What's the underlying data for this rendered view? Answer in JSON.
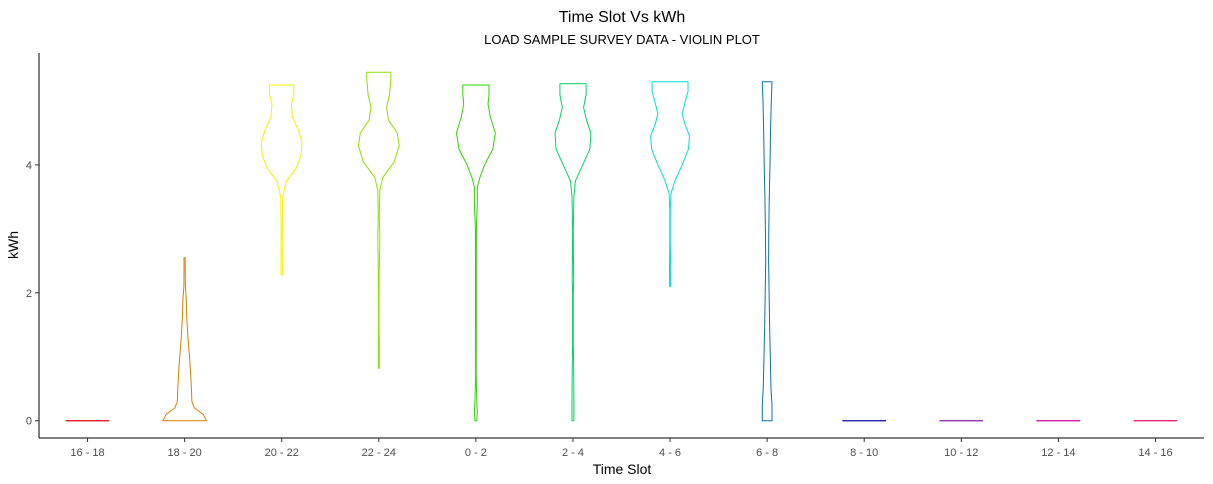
{
  "chart_data": {
    "type": "violin",
    "title": "Time Slot Vs kWh",
    "subtitle": "LOAD SAMPLE SURVEY DATA - VIOLIN PLOT",
    "xlabel": "Time Slot",
    "ylabel": "kWh",
    "ylim": [
      -0.27,
      5.75
    ],
    "yticks": [
      0,
      2,
      4
    ],
    "grid": false,
    "legend": "none",
    "categories": [
      "16 - 18",
      "18 - 20",
      "20 - 22",
      "22 - 24",
      "0 - 2",
      "2 - 4",
      "4 - 6",
      "6 - 8",
      "8 - 10",
      "10 - 12",
      "12 - 14",
      "14 - 16"
    ],
    "series": [
      {
        "category": "16 - 18",
        "color": "#e8000b",
        "profile": [
          [
            0,
            0.45
          ]
        ]
      },
      {
        "category": "18 - 20",
        "color": "#d68100",
        "profile": [
          [
            0,
            0.45
          ],
          [
            0.1,
            0.38
          ],
          [
            0.2,
            0.2
          ],
          [
            0.3,
            0.15
          ],
          [
            0.5,
            0.14
          ],
          [
            0.8,
            0.12
          ],
          [
            1.0,
            0.1
          ],
          [
            1.3,
            0.07
          ],
          [
            1.6,
            0.045
          ],
          [
            1.9,
            0.035
          ],
          [
            2.1,
            0.015
          ],
          [
            2.4,
            0.012
          ],
          [
            2.55,
            0.012
          ]
        ]
      },
      {
        "category": "20 - 22",
        "color": "#f2f200",
        "profile": [
          [
            2.28,
            0.015
          ],
          [
            2.4,
            0.015
          ],
          [
            3.0,
            0.012
          ],
          [
            3.5,
            0.018
          ],
          [
            3.75,
            0.1
          ],
          [
            3.95,
            0.3
          ],
          [
            4.15,
            0.4
          ],
          [
            4.35,
            0.42
          ],
          [
            4.55,
            0.34
          ],
          [
            4.75,
            0.22
          ],
          [
            4.95,
            0.2
          ],
          [
            5.1,
            0.25
          ],
          [
            5.22,
            0.25
          ],
          [
            5.25,
            0.25
          ]
        ]
      },
      {
        "category": "22 - 24",
        "color": "#8fdf00",
        "profile": [
          [
            0.82,
            0.01
          ],
          [
            1.2,
            0.01
          ],
          [
            1.5,
            0.005
          ],
          [
            2.3,
            0.008
          ],
          [
            2.7,
            0.018
          ],
          [
            2.9,
            0.02
          ],
          [
            3.2,
            0.01
          ],
          [
            3.6,
            0.02
          ],
          [
            3.8,
            0.08
          ],
          [
            4.05,
            0.32
          ],
          [
            4.3,
            0.42
          ],
          [
            4.5,
            0.38
          ],
          [
            4.7,
            0.2
          ],
          [
            4.9,
            0.16
          ],
          [
            5.1,
            0.22
          ],
          [
            5.35,
            0.25
          ],
          [
            5.45,
            0.25
          ]
        ]
      },
      {
        "category": "0 - 2",
        "color": "#2ed400",
        "profile": [
          [
            0,
            0.02
          ],
          [
            0.15,
            0.03
          ],
          [
            0.3,
            0.02
          ],
          [
            0.7,
            0.006
          ],
          [
            1.5,
            0.008
          ],
          [
            2.5,
            0.008
          ],
          [
            3.0,
            0.01
          ],
          [
            3.2,
            0.02
          ],
          [
            3.4,
            0.03
          ],
          [
            3.65,
            0.03
          ],
          [
            3.8,
            0.08
          ],
          [
            4.0,
            0.18
          ],
          [
            4.25,
            0.35
          ],
          [
            4.5,
            0.4
          ],
          [
            4.75,
            0.3
          ],
          [
            4.95,
            0.25
          ],
          [
            5.1,
            0.27
          ],
          [
            5.25,
            0.27
          ]
        ]
      },
      {
        "category": "2 - 4",
        "color": "#00d45e",
        "profile": [
          [
            0,
            0.02
          ],
          [
            0.3,
            0.02
          ],
          [
            0.8,
            0.015
          ],
          [
            1.2,
            0.008
          ],
          [
            2.0,
            0.008
          ],
          [
            2.2,
            0.015
          ],
          [
            2.6,
            0.01
          ],
          [
            3.0,
            0.008
          ],
          [
            3.5,
            0.02
          ],
          [
            3.75,
            0.05
          ],
          [
            4.0,
            0.2
          ],
          [
            4.25,
            0.35
          ],
          [
            4.5,
            0.37
          ],
          [
            4.7,
            0.28
          ],
          [
            4.9,
            0.22
          ],
          [
            5.1,
            0.27
          ],
          [
            5.27,
            0.27
          ]
        ]
      },
      {
        "category": "4 - 6",
        "color": "#00e0d0",
        "profile": [
          [
            2.1,
            0.01
          ],
          [
            2.4,
            0.012
          ],
          [
            2.8,
            0.006
          ],
          [
            3.3,
            0.006
          ],
          [
            3.55,
            0.02
          ],
          [
            3.75,
            0.1
          ],
          [
            4.0,
            0.25
          ],
          [
            4.25,
            0.38
          ],
          [
            4.45,
            0.4
          ],
          [
            4.65,
            0.3
          ],
          [
            4.8,
            0.25
          ],
          [
            4.95,
            0.3
          ],
          [
            5.15,
            0.37
          ],
          [
            5.3,
            0.37
          ]
        ]
      },
      {
        "category": "6 - 8",
        "color": "#0a72b4",
        "profile": [
          [
            0,
            0.1
          ],
          [
            0.25,
            0.1
          ],
          [
            0.5,
            0.08
          ],
          [
            1.0,
            0.065
          ],
          [
            1.5,
            0.05
          ],
          [
            2.0,
            0.04
          ],
          [
            2.5,
            0.03
          ],
          [
            3.0,
            0.035
          ],
          [
            3.5,
            0.045
          ],
          [
            4.0,
            0.06
          ],
          [
            4.5,
            0.07
          ],
          [
            5.0,
            0.085
          ],
          [
            5.3,
            0.1
          ]
        ]
      },
      {
        "category": "8 - 10",
        "color": "#0a0d9c",
        "profile": [
          [
            0,
            0.45
          ]
        ]
      },
      {
        "category": "10 - 12",
        "color": "#7a1fa8",
        "profile": [
          [
            0,
            0.45
          ]
        ]
      },
      {
        "category": "12 - 14",
        "color": "#d0009c",
        "profile": [
          [
            0,
            0.45
          ]
        ]
      },
      {
        "category": "14 - 16",
        "color": "#e40d6e",
        "profile": [
          [
            0,
            0.45
          ]
        ]
      }
    ]
  }
}
